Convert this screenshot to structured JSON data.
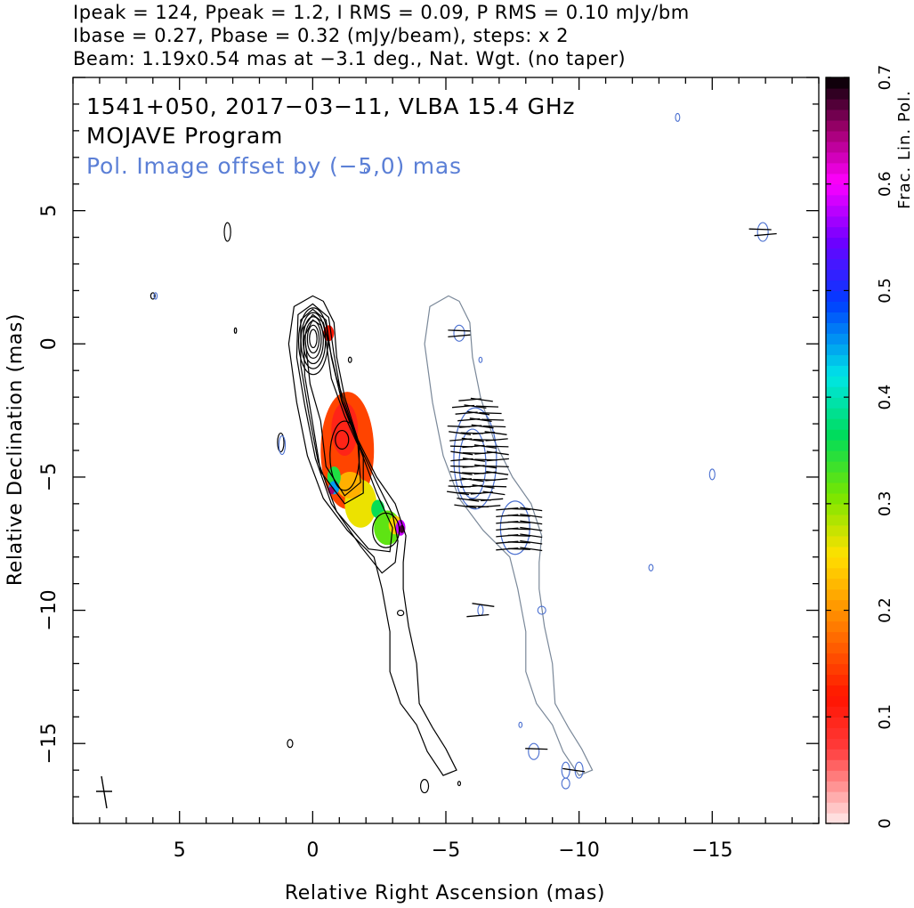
{
  "header": {
    "line1": "Ipeak = 124, Ppeak = 1.2, I RMS = 0.09, P RMS = 0.10 mJy/bm",
    "line2": "Ibase = 0.27, Pbase = 0.32 (mJy/beam), steps: x 2",
    "line3": "Beam: 1.19x0.54 mas at −3.1 deg., Nat. Wgt. (no taper)"
  },
  "chart_data": {
    "type": "contour",
    "source": "1541+050",
    "date": "2017−03−11",
    "instrument": "VLBA 15.4 GHz",
    "title_line": "1541+050, 2017−03−11, VLBA 15.4 GHz",
    "program": "MOJAVE Program",
    "pol_note": "Pol. Image offset by (−5,0) mas",
    "xlabel": "Relative Right Ascension (mas)",
    "ylabel": "Relative Declination (mas)",
    "xlim": [
      9,
      -19
    ],
    "ylim": [
      -18,
      10
    ],
    "xticks": [
      5,
      0,
      -5,
      -10,
      -15
    ],
    "xtick_labels": [
      "5",
      "0",
      "−5",
      "−10",
      "−15"
    ],
    "yticks": [
      5,
      0,
      -5,
      -10,
      -15
    ],
    "ytick_labels": [
      "5",
      "0",
      "−5",
      "−10",
      "−15"
    ],
    "colorbar": {
      "label": "Frac. Lin. Pol.",
      "range": [
        0,
        0.7
      ],
      "ticks": [
        0,
        0.1,
        0.2,
        0.3,
        0.4,
        0.5,
        0.6,
        0.7
      ],
      "tick_labels": [
        "0",
        "0.1",
        "0.2",
        "0.3",
        "0.4",
        "0.5",
        "0.6",
        "0.7"
      ]
    },
    "core": {
      "x": 0,
      "y": 0
    },
    "jet_ridge": [
      {
        "x": 0,
        "y": 0
      },
      {
        "x": -1.0,
        "y": -3.5
      },
      {
        "x": -1.7,
        "y": -5.5
      },
      {
        "x": -2.6,
        "y": -7.0
      },
      {
        "x": -3.0,
        "y": -9.5
      },
      {
        "x": -3.3,
        "y": -12.5
      },
      {
        "x": -4.3,
        "y": -15.5
      }
    ],
    "frac_pol_regions": [
      {
        "x": -0.6,
        "y": 0.4,
        "fpol": 0.12
      },
      {
        "x": -1.2,
        "y": -4.0,
        "fpol": 0.15
      },
      {
        "x": -1.7,
        "y": -6.3,
        "fpol": 0.28
      },
      {
        "x": -0.8,
        "y": -5.3,
        "fpol": 0.45
      },
      {
        "x": -2.5,
        "y": -6.5,
        "fpol": 0.33
      },
      {
        "x": -3.3,
        "y": -6.9,
        "fpol": 0.6
      }
    ],
    "beam": {
      "major_mas": 1.19,
      "minor_mas": 0.54,
      "pa_deg": -3.1
    }
  }
}
